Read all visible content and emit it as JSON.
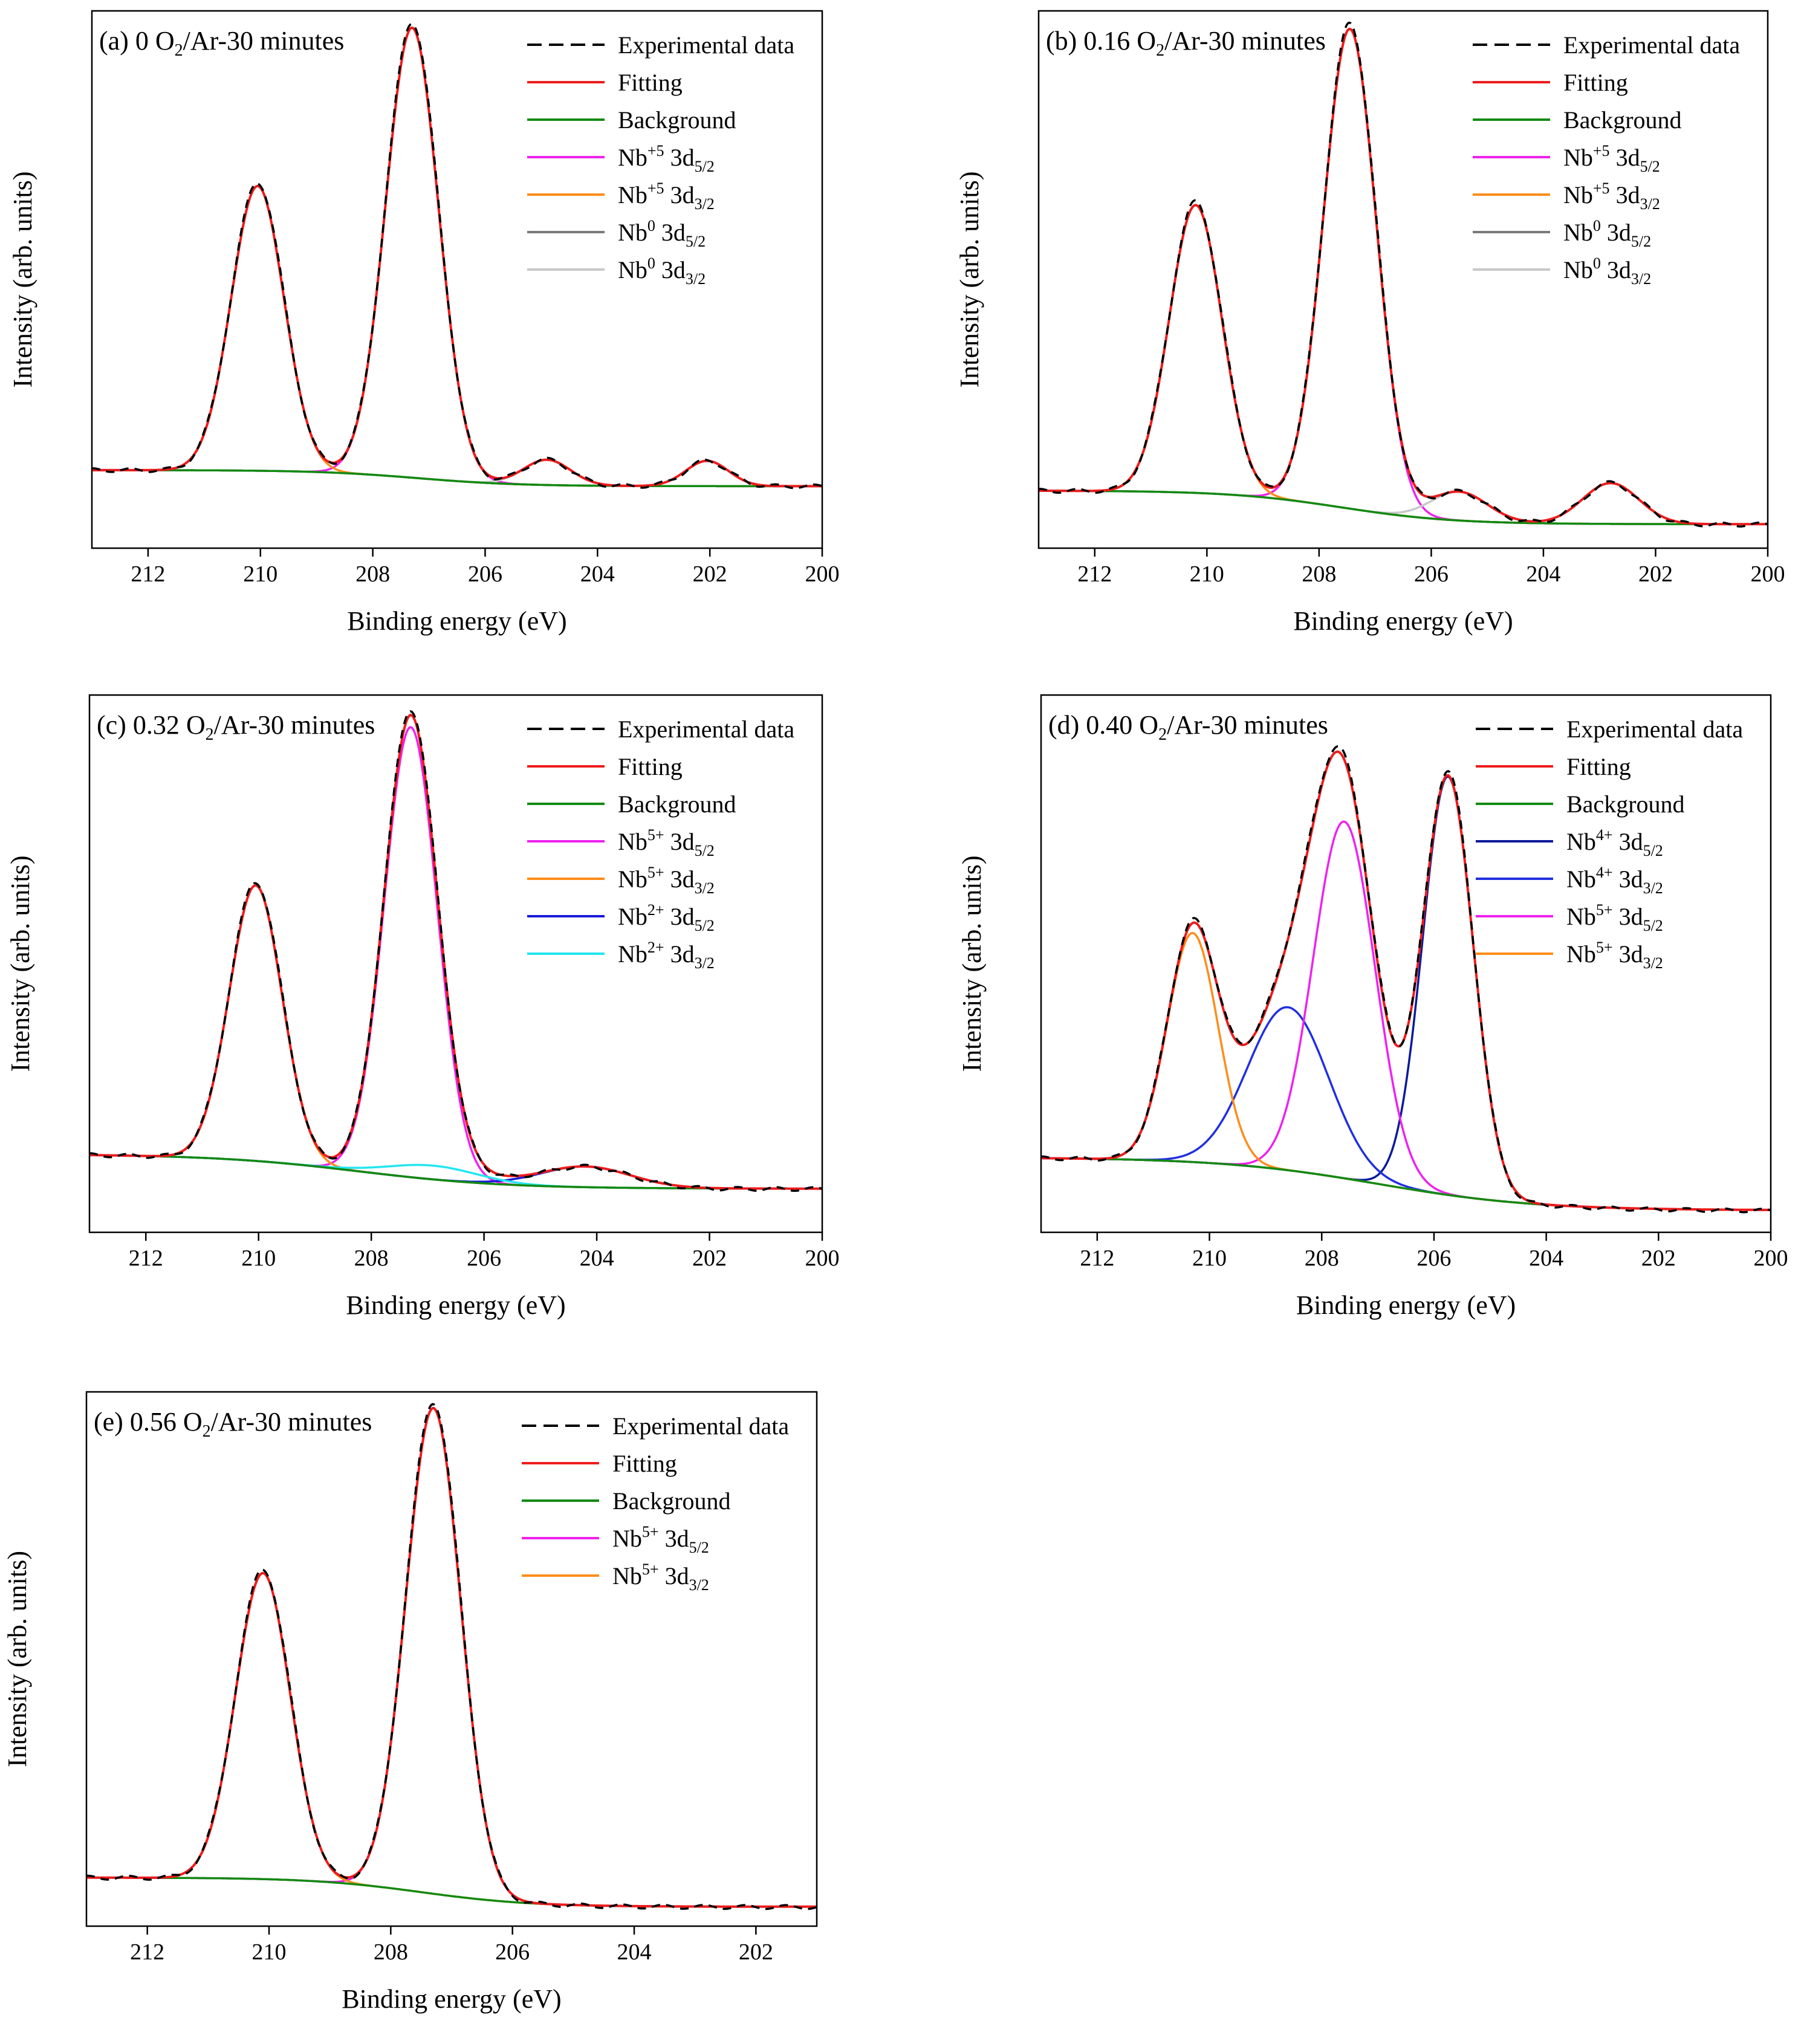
{
  "colors": {
    "experimental": "#000000",
    "fitting": "#ee1c1c",
    "background": "#128a12",
    "nb5_52": "#ee22ee",
    "nb5_32": "#ff8c1a",
    "nb0_52": "#7a7a7a",
    "nb0_32": "#c8c8c8",
    "nb2_52": "#1a1ad8",
    "nb2_32": "#22e6f0",
    "nb4_52": "#0a1a9a",
    "nb4_32": "#1f2fe0"
  },
  "chart_data": [
    {
      "type": "line",
      "panel": "(a)",
      "title": {
        "pre": "(a) 0 O",
        "sub": "2",
        "post": "/Ar-30 minutes"
      },
      "xlabel": "Binding energy (eV)",
      "ylabel": "Intensity (arb. units)",
      "xlim": [
        213,
        200
      ],
      "x_reversed": true,
      "xticks": [
        212,
        210,
        208,
        206,
        204,
        202,
        200
      ],
      "ylim": [
        -0.17,
        1.0
      ],
      "grid": false,
      "legend_position": "top-right",
      "baseline": {
        "left": 0.0,
        "right": -0.035,
        "center": 207.2,
        "width": 0.9
      },
      "peaks": [
        {
          "series": "Nb+5 3d5/2",
          "center": 207.3,
          "height": 0.98,
          "sigma": 0.47
        },
        {
          "series": "Nb+5 3d3/2",
          "center": 210.05,
          "height": 0.62,
          "sigma": 0.47
        },
        {
          "series": "Nb0 3d5/2",
          "center": 202.05,
          "height": 0.055,
          "sigma": 0.38
        },
        {
          "series": "Nb0 3d3/2",
          "center": 204.9,
          "height": 0.055,
          "sigma": 0.42
        }
      ],
      "series": [
        {
          "name": "Experimental data",
          "sub": null,
          "style": "dashed",
          "color": "experimental"
        },
        {
          "name": "Fitting",
          "sub": null,
          "style": "solid",
          "color": "fitting"
        },
        {
          "name": "Background",
          "sub": null,
          "style": "solid",
          "color": "background"
        },
        {
          "name": "Nb+5 3d5/2",
          "base": "Nb",
          "sup": "+5",
          "mid": " 3d",
          "sub": "5/2",
          "style": "solid",
          "color": "nb5_52"
        },
        {
          "name": "Nb+5 3d3/2",
          "base": "Nb",
          "sup": "+5",
          "mid": " 3d",
          "sub": "3/2",
          "style": "solid",
          "color": "nb5_32"
        },
        {
          "name": "Nb0 3d5/2",
          "base": "Nb",
          "sup": "0",
          "mid": " 3d",
          "sub": "5/2",
          "style": "solid",
          "color": "nb0_52"
        },
        {
          "name": "Nb0 3d3/2",
          "base": "Nb",
          "sup": "0",
          "mid": " 3d",
          "sub": "3/2",
          "style": "solid",
          "color": "nb0_32"
        }
      ]
    },
    {
      "type": "line",
      "panel": "(b)",
      "title": {
        "pre": "(b) 0.16 O",
        "sub": "2",
        "post": "/Ar-30 minutes"
      },
      "xlabel": "Binding energy (eV)",
      "ylabel": "Intensity (arb. units)",
      "xlim": [
        213,
        200
      ],
      "x_reversed": true,
      "xticks": [
        212,
        210,
        208,
        206,
        204,
        202,
        200
      ],
      "ylim": [
        -0.12,
        1.0
      ],
      "grid": false,
      "legend_position": "top-right",
      "baseline": {
        "left": 0.0,
        "right": -0.07,
        "center": 207.6,
        "width": 1.0
      },
      "peaks": [
        {
          "series": "Nb+5 3d5/2",
          "center": 207.45,
          "height": 1.0,
          "sigma": 0.47
        },
        {
          "series": "Nb+5 3d3/2",
          "center": 210.2,
          "height": 0.6,
          "sigma": 0.47
        },
        {
          "series": "Nb0 3d5/2",
          "center": 202.8,
          "height": 0.085,
          "sigma": 0.5
        },
        {
          "series": "Nb0 3d3/2",
          "center": 205.5,
          "height": 0.06,
          "sigma": 0.5
        }
      ],
      "series": [
        {
          "name": "Experimental data",
          "sub": null,
          "style": "dashed",
          "color": "experimental"
        },
        {
          "name": "Fitting",
          "sub": null,
          "style": "solid",
          "color": "fitting"
        },
        {
          "name": "Background",
          "sub": null,
          "style": "solid",
          "color": "background"
        },
        {
          "name": "Nb+5 3d5/2",
          "base": "Nb",
          "sup": "+5",
          "mid": " 3d",
          "sub": "5/2",
          "style": "solid",
          "color": "nb5_52"
        },
        {
          "name": "Nb+5 3d3/2",
          "base": "Nb",
          "sup": "+5",
          "mid": " 3d",
          "sub": "3/2",
          "style": "solid",
          "color": "nb5_32"
        },
        {
          "name": "Nb0 3d5/2",
          "base": "Nb",
          "sup": "0",
          "mid": " 3d",
          "sub": "5/2",
          "style": "solid",
          "color": "nb0_52"
        },
        {
          "name": "Nb0 3d3/2",
          "base": "Nb",
          "sup": "0",
          "mid": " 3d",
          "sub": "3/2",
          "style": "solid",
          "color": "nb0_32"
        }
      ]
    },
    {
      "type": "line",
      "panel": "(c)",
      "title": {
        "pre": "(c) 0.32 O",
        "sub": "2",
        "post": "/Ar-30 minutes"
      },
      "xlabel": "Binding energy (eV)",
      "ylabel": "Intensity (arb. units)",
      "xlim": [
        213,
        200
      ],
      "x_reversed": true,
      "xticks": [
        212,
        210,
        208,
        206,
        204,
        202,
        200
      ],
      "ylim": [
        -0.17,
        1.0
      ],
      "grid": false,
      "legend_position": "top-right",
      "baseline": {
        "left": 0.0,
        "right": -0.075,
        "center": 208.2,
        "width": 1.3
      },
      "peaks": [
        {
          "series": "Nb5+ 3d5/2",
          "center": 207.3,
          "height": 0.98,
          "sigma": 0.47
        },
        {
          "series": "Nb5+ 3d3/2",
          "center": 210.05,
          "height": 0.6,
          "sigma": 0.47
        },
        {
          "series": "Nb2+ 3d5/2",
          "center": 204.2,
          "height": 0.045,
          "sigma": 0.8
        },
        {
          "series": "Nb2+ 3d3/2",
          "center": 206.9,
          "height": 0.03,
          "sigma": 0.8
        }
      ],
      "series": [
        {
          "name": "Experimental data",
          "sub": null,
          "style": "dashed",
          "color": "experimental"
        },
        {
          "name": "Fitting",
          "sub": null,
          "style": "solid",
          "color": "fitting"
        },
        {
          "name": "Background",
          "sub": null,
          "style": "solid",
          "color": "background"
        },
        {
          "name": "Nb5+ 3d5/2",
          "base": "Nb",
          "sup": "5+",
          "mid": " 3d",
          "sub": "5/2",
          "style": "solid",
          "color": "nb5_52"
        },
        {
          "name": "Nb5+ 3d3/2",
          "base": "Nb",
          "sup": "5+",
          "mid": " 3d",
          "sub": "3/2",
          "style": "solid",
          "color": "nb5_32"
        },
        {
          "name": "Nb2+ 3d5/2",
          "base": "Nb",
          "sup": "2+",
          "mid": " 3d",
          "sub": "5/2",
          "style": "solid",
          "color": "nb2_52"
        },
        {
          "name": "Nb2+ 3d3/2",
          "base": "Nb",
          "sup": "2+",
          "mid": " 3d",
          "sub": "3/2",
          "style": "solid",
          "color": "nb2_32"
        }
      ]
    },
    {
      "type": "line",
      "panel": "(d)",
      "title": {
        "pre": "(d) 0.40 O",
        "sub": "2",
        "post": "/Ar-30 minutes"
      },
      "xlabel": "Binding energy (eV)",
      "ylabel": "Intensity (arb. units)",
      "xlim": [
        213,
        200
      ],
      "x_reversed": true,
      "xticks": [
        212,
        210,
        208,
        206,
        204,
        202,
        200
      ],
      "ylim": [
        -0.17,
        1.05
      ],
      "grid": false,
      "legend_position": "top-right",
      "baseline": {
        "left": 0.0,
        "right": -0.12,
        "center": 207.0,
        "width": 1.4
      },
      "peaks": [
        {
          "series": "Nb4+ 3d5/2",
          "center": 205.75,
          "height": 0.95,
          "sigma": 0.45
        },
        {
          "series": "Nb4+ 3d3/2",
          "center": 208.6,
          "height": 0.37,
          "sigma": 0.72
        },
        {
          "series": "Nb5+ 3d5/2",
          "center": 207.6,
          "height": 0.81,
          "sigma": 0.55
        },
        {
          "series": "Nb5+ 3d3/2",
          "center": 210.3,
          "height": 0.52,
          "sigma": 0.45
        }
      ],
      "series": [
        {
          "name": "Experimental data",
          "sub": null,
          "style": "dashed",
          "color": "experimental"
        },
        {
          "name": "Fitting",
          "sub": null,
          "style": "solid",
          "color": "fitting"
        },
        {
          "name": "Background",
          "sub": null,
          "style": "solid",
          "color": "background"
        },
        {
          "name": "Nb4+ 3d5/2",
          "base": "Nb",
          "sup": "4+",
          "mid": " 3d",
          "sub": "5/2",
          "style": "solid",
          "color": "nb4_52"
        },
        {
          "name": "Nb4+ 3d3/2",
          "base": "Nb",
          "sup": "4+",
          "mid": " 3d",
          "sub": "3/2",
          "style": "solid",
          "color": "nb4_32"
        },
        {
          "name": "Nb5+ 3d5/2",
          "base": "Nb",
          "sup": "5+",
          "mid": " 3d",
          "sub": "5/2",
          "style": "solid",
          "color": "nb5_52"
        },
        {
          "name": "Nb5+ 3d3/2",
          "base": "Nb",
          "sup": "5+",
          "mid": " 3d",
          "sub": "3/2",
          "style": "solid",
          "color": "nb5_32"
        }
      ]
    },
    {
      "type": "line",
      "panel": "(e)",
      "title": {
        "pre": "(e) 0.56 O",
        "sub": "2",
        "post": "/Ar-30 minutes"
      },
      "xlabel": "Binding energy (eV)",
      "ylabel": "Intensity (arb. units)",
      "xlim": [
        213,
        201
      ],
      "x_reversed": true,
      "xticks": [
        212,
        210,
        208,
        206,
        204,
        202
      ],
      "ylim": [
        -0.1,
        1.0
      ],
      "grid": false,
      "legend_position": "top-right",
      "baseline": {
        "left": 0.0,
        "right": -0.06,
        "center": 207.5,
        "width": 0.9
      },
      "peaks": [
        {
          "series": "Nb5+ 3d5/2",
          "center": 207.3,
          "height": 1.0,
          "sigma": 0.45
        },
        {
          "series": "Nb5+ 3d3/2",
          "center": 210.1,
          "height": 0.63,
          "sigma": 0.45
        }
      ],
      "series": [
        {
          "name": "Experimental data",
          "sub": null,
          "style": "dashed",
          "color": "experimental"
        },
        {
          "name": "Fitting",
          "sub": null,
          "style": "solid",
          "color": "fitting"
        },
        {
          "name": "Background",
          "sub": null,
          "style": "solid",
          "color": "background"
        },
        {
          "name": "Nb5+ 3d5/2",
          "base": "Nb",
          "sup": "5+",
          "mid": " 3d",
          "sub": "5/2",
          "style": "solid",
          "color": "nb5_52"
        },
        {
          "name": "Nb5+ 3d3/2",
          "base": "Nb",
          "sup": "5+",
          "mid": " 3d",
          "sub": "3/2",
          "style": "solid",
          "color": "nb5_32"
        }
      ]
    }
  ]
}
